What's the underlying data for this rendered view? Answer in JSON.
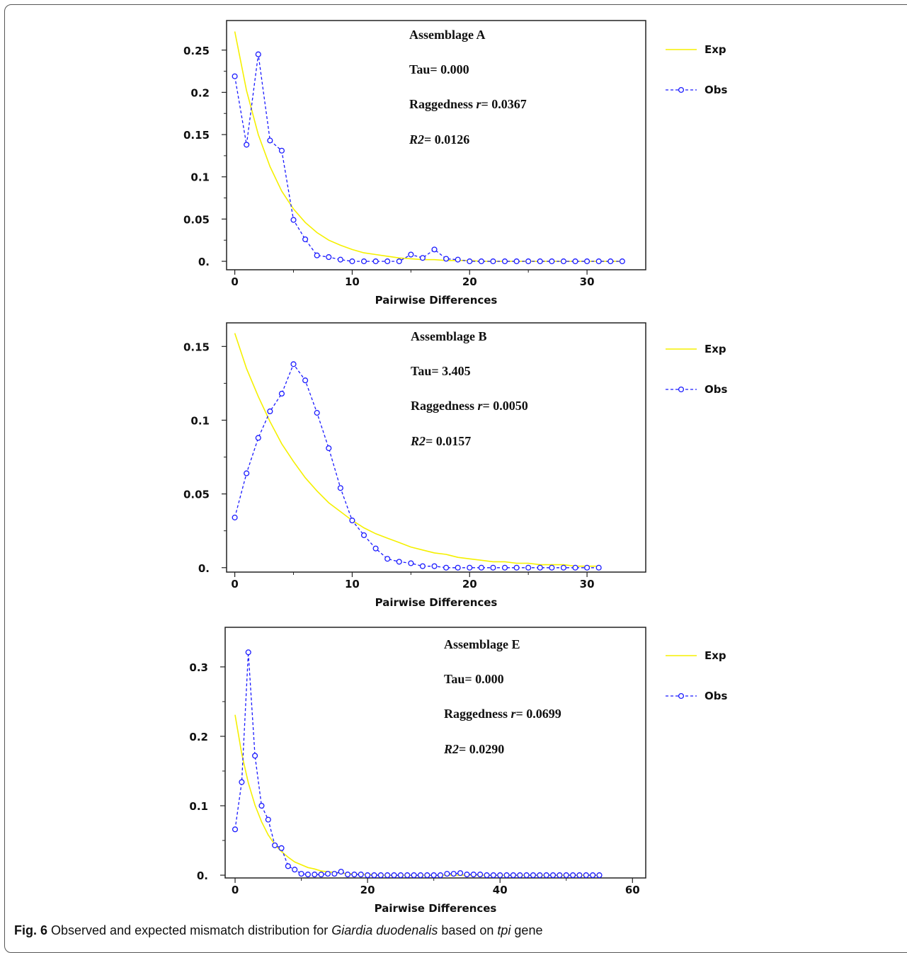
{
  "chart_data": [
    {
      "type": "line",
      "xlabel": "Pairwise Differences",
      "ylabel": "",
      "xlim": [
        -0.7,
        35
      ],
      "ylim": [
        -0.01,
        0.285
      ],
      "xticks": [
        0,
        10,
        20,
        30
      ],
      "yticks": [
        0,
        0.05,
        0.1,
        0.15,
        0.2,
        0.25
      ],
      "ytick_labels": [
        "0.",
        "0.05",
        "0.1",
        "0.15",
        "0.2",
        "0.25"
      ],
      "legend_position": "right",
      "annotations": {
        "title": "Assemblage A",
        "tau": "Tau= 0.000",
        "ragged_pre": "Raggedness ",
        "ragged_r": "r",
        "ragged_val": "= 0.0367",
        "r2_label": "R2",
        "r2_val": "= 0.0126"
      },
      "series": [
        {
          "name": "Exp",
          "style": "solid",
          "color": "#f5f000",
          "x": [
            0,
            1,
            2,
            3,
            4,
            5,
            6,
            7,
            8,
            9,
            10,
            11,
            12,
            13,
            14,
            15,
            16,
            17,
            18,
            19,
            20,
            21,
            22,
            23,
            24,
            25,
            26,
            27,
            28,
            29,
            30,
            31,
            32,
            33
          ],
          "y": [
            0.272,
            0.202,
            0.15,
            0.112,
            0.083,
            0.062,
            0.046,
            0.034,
            0.025,
            0.019,
            0.014,
            0.01,
            0.008,
            0.006,
            0.004,
            0.003,
            0.002,
            0.002,
            0.001,
            0.001,
            0.001,
            0,
            0,
            0,
            0,
            0,
            0,
            0,
            0,
            0,
            0,
            0,
            0,
            0
          ]
        },
        {
          "name": "Obs",
          "style": "dashed-circle",
          "color": "#1a1aff",
          "x": [
            0,
            1,
            2,
            3,
            4,
            5,
            6,
            7,
            8,
            9,
            10,
            11,
            12,
            13,
            14,
            15,
            16,
            17,
            18,
            19,
            20,
            21,
            22,
            23,
            24,
            25,
            26,
            27,
            28,
            29,
            30,
            31,
            32,
            33
          ],
          "y": [
            0.219,
            0.138,
            0.245,
            0.143,
            0.131,
            0.049,
            0.026,
            0.007,
            0.005,
            0.002,
            0.0,
            0.0,
            0.0,
            0.0,
            0.0,
            0.008,
            0.004,
            0.014,
            0.003,
            0.002,
            0,
            0,
            0,
            0,
            0,
            0,
            0,
            0,
            0,
            0,
            0,
            0,
            0,
            0
          ]
        }
      ]
    },
    {
      "type": "line",
      "xlabel": "Pairwise Differences",
      "ylabel": "",
      "xlim": [
        -0.7,
        35
      ],
      "ylim": [
        -0.003,
        0.166
      ],
      "xticks": [
        0,
        10,
        20,
        30
      ],
      "yticks": [
        0,
        0.05,
        0.1,
        0.15
      ],
      "ytick_labels": [
        "0.",
        "0.05",
        "0.1",
        "0.15"
      ],
      "legend_position": "right",
      "annotations": {
        "title": "Assemblage B",
        "tau": "Tau= 3.405",
        "ragged_pre": "Raggedness ",
        "ragged_r": "r",
        "ragged_val": "= 0.0050",
        "r2_label": "R2",
        "r2_val": "= 0.0157"
      },
      "series": [
        {
          "name": "Exp",
          "style": "solid",
          "color": "#f5f000",
          "x": [
            0,
            1,
            2,
            3,
            4,
            5,
            6,
            7,
            8,
            9,
            10,
            11,
            12,
            13,
            14,
            15,
            16,
            17,
            18,
            19,
            20,
            21,
            22,
            23,
            24,
            25,
            26,
            27,
            28,
            29,
            30,
            31
          ],
          "y": [
            0.159,
            0.135,
            0.116,
            0.099,
            0.084,
            0.072,
            0.061,
            0.052,
            0.044,
            0.038,
            0.032,
            0.027,
            0.023,
            0.02,
            0.017,
            0.014,
            0.012,
            0.01,
            0.009,
            0.007,
            0.006,
            0.005,
            0.004,
            0.004,
            0.003,
            0.003,
            0.002,
            0.002,
            0.002,
            0.001,
            0.001,
            0.001
          ]
        },
        {
          "name": "Obs",
          "style": "dashed-circle",
          "color": "#1a1aff",
          "x": [
            0,
            1,
            2,
            3,
            4,
            5,
            6,
            7,
            8,
            9,
            10,
            11,
            12,
            13,
            14,
            15,
            16,
            17,
            18,
            19,
            20,
            21,
            22,
            23,
            24,
            25,
            26,
            27,
            28,
            29,
            30,
            31
          ],
          "y": [
            0.034,
            0.064,
            0.088,
            0.106,
            0.118,
            0.138,
            0.127,
            0.105,
            0.081,
            0.054,
            0.032,
            0.022,
            0.013,
            0.006,
            0.004,
            0.003,
            0.001,
            0.001,
            0.0,
            0.0,
            0.0,
            0.0,
            0.0,
            0.0,
            0.0,
            0.0,
            0.0,
            0.0,
            0.0,
            0.0,
            0.0,
            0.0
          ]
        }
      ]
    },
    {
      "type": "line",
      "xlabel": "Pairwise Differences",
      "ylabel": "",
      "xlim": [
        -1.5,
        62
      ],
      "ylim": [
        -0.004,
        0.357
      ],
      "xticks": [
        0,
        20,
        40,
        60
      ],
      "yticks": [
        0,
        0.1,
        0.2,
        0.3
      ],
      "ytick_labels": [
        "0.",
        "0.1",
        "0.2",
        "0.3"
      ],
      "legend_position": "right",
      "annotations": {
        "title": "Assemblage E",
        "tau": "Tau= 0.000",
        "ragged_pre": "Raggedness ",
        "ragged_r": "r",
        "ragged_val": "= 0.0699",
        "r2_label": "R2",
        "r2_val": "= 0.0290"
      },
      "series": [
        {
          "name": "Exp",
          "style": "solid",
          "color": "#f5f000",
          "x": [
            0,
            1,
            2,
            3,
            4,
            5,
            6,
            7,
            8,
            9,
            10,
            11,
            12,
            13,
            14,
            15,
            16,
            17,
            18,
            19,
            20,
            21,
            22,
            23,
            24,
            25,
            26,
            27,
            28,
            29,
            30,
            31,
            32,
            33,
            34,
            35,
            36,
            37,
            38,
            39,
            40,
            41,
            42,
            43,
            44,
            45,
            46,
            47,
            48,
            49,
            50,
            51,
            52,
            53,
            54,
            55
          ],
          "y": [
            0.231,
            0.175,
            0.133,
            0.101,
            0.077,
            0.058,
            0.044,
            0.034,
            0.026,
            0.019,
            0.015,
            0.011,
            0.009,
            0.006,
            0.005,
            0.004,
            0.003,
            0.002,
            0.002,
            0.001,
            0.001,
            0.001,
            0,
            0,
            0,
            0,
            0,
            0,
            0,
            0,
            0,
            0,
            0,
            0,
            0,
            0,
            0,
            0,
            0,
            0,
            0,
            0,
            0,
            0,
            0,
            0,
            0,
            0,
            0,
            0,
            0,
            0,
            0,
            0,
            0,
            0
          ]
        },
        {
          "name": "Obs",
          "style": "dashed-circle",
          "color": "#1a1aff",
          "x": [
            0,
            1,
            2,
            3,
            4,
            5,
            6,
            7,
            8,
            9,
            10,
            11,
            12,
            13,
            14,
            15,
            16,
            17,
            18,
            19,
            20,
            21,
            22,
            23,
            24,
            25,
            26,
            27,
            28,
            29,
            30,
            31,
            32,
            33,
            34,
            35,
            36,
            37,
            38,
            39,
            40,
            41,
            42,
            43,
            44,
            45,
            46,
            47,
            48,
            49,
            50,
            51,
            52,
            53,
            54,
            55
          ],
          "y": [
            0.066,
            0.134,
            0.321,
            0.172,
            0.1,
            0.08,
            0.043,
            0.039,
            0.013,
            0.008,
            0.002,
            0.001,
            0.001,
            0.001,
            0.002,
            0.002,
            0.005,
            0.001,
            0.001,
            0.001,
            0,
            0,
            0,
            0,
            0,
            0,
            0,
            0,
            0,
            0,
            0,
            0,
            0.002,
            0.002,
            0.003,
            0.001,
            0.001,
            0.001,
            0,
            0,
            0,
            0,
            0,
            0,
            0,
            0,
            0,
            0,
            0,
            0,
            0,
            0,
            0,
            0,
            0,
            0
          ]
        }
      ]
    }
  ],
  "caption": {
    "fig_label": "Fig. 6",
    "text_1": " Observed and expected mismatch distribution for ",
    "species": "Giardia duodenalis",
    "text_2": " based on ",
    "gene": "tpi",
    "text_3": " gene"
  }
}
